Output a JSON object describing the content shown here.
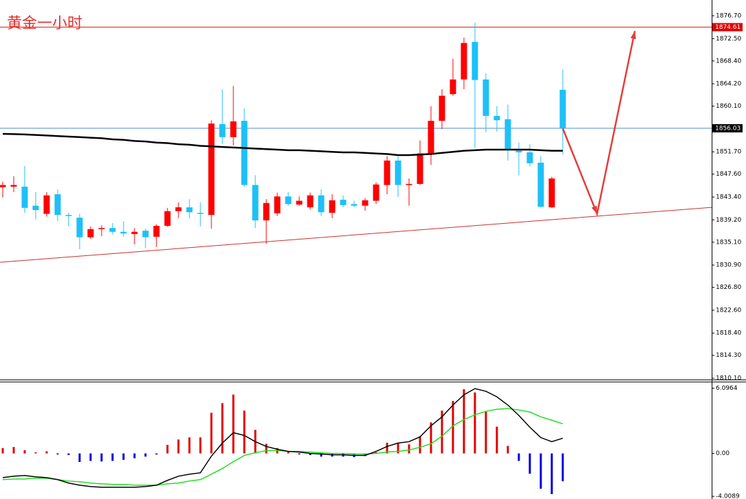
{
  "chart_data": [
    {
      "type": "candlestick",
      "title": "黄金一小时",
      "open": [
        1845.2,
        1845.3,
        1845.3,
        1841.8,
        1840.3,
        1843.9,
        1840.1,
        1839.6,
        1836.0,
        1837.5,
        1837.7,
        1837.0,
        1836.6,
        1837.2,
        1836.1,
        1838.1,
        1840.8,
        1841.5,
        1840.5,
        1840.1,
        1856.8,
        1854.4,
        1857.4,
        1845.6,
        1839.1,
        1840.4,
        1843.5,
        1842.0,
        1841.5,
        1843.7,
        1840.5,
        1842.9,
        1842.1,
        1841.8,
        1842.7,
        1845.6,
        1850.1,
        1845.6,
        1845.8,
        1851.4,
        1857.4,
        1862.3,
        1865.0,
        1871.9,
        1865.0,
        1858.3,
        1857.7,
        1851.9,
        1851.6,
        1849.7,
        1841.5,
        1863.1
      ],
      "high": [
        1846.2,
        1847.2,
        1849.1,
        1844.3,
        1844.3,
        1844.8,
        1840.5,
        1840.3,
        1838.0,
        1838.2,
        1838.6,
        1838.9,
        1837.7,
        1837.6,
        1838.4,
        1841.4,
        1842.4,
        1843.0,
        1842.4,
        1857.5,
        1863.2,
        1863.8,
        1859.7,
        1847.4,
        1843.0,
        1844.2,
        1844.3,
        1843.5,
        1844.2,
        1844.8,
        1843.9,
        1843.7,
        1842.7,
        1843.2,
        1846.1,
        1850.9,
        1850.9,
        1846.8,
        1853.8,
        1860.1,
        1863.2,
        1868.8,
        1872.7,
        1875.4,
        1866.1,
        1860.1,
        1860.4,
        1853.4,
        1853.1,
        1850.9,
        1847.1,
        1866.9
      ],
      "low": [
        1843.3,
        1844.3,
        1840.5,
        1839.3,
        1839.8,
        1839.0,
        1838.0,
        1833.8,
        1835.7,
        1836.2,
        1836.5,
        1836.1,
        1834.7,
        1834.0,
        1834.2,
        1837.9,
        1839.5,
        1839.5,
        1838.0,
        1837.6,
        1853.1,
        1852.9,
        1845.3,
        1837.7,
        1834.8,
        1839.9,
        1841.8,
        1841.8,
        1841.1,
        1839.9,
        1839.5,
        1841.5,
        1841.5,
        1840.9,
        1842.1,
        1843.9,
        1843.4,
        1841.8,
        1845.6,
        1849.3,
        1855.9,
        1862.0,
        1863.2,
        1852.5,
        1855.3,
        1855.4,
        1850.1,
        1847.4,
        1849.0,
        1841.5,
        1841.4,
        1851.2
      ],
      "close": [
        1845.6,
        1845.6,
        1841.4,
        1841.0,
        1843.7,
        1840.1,
        1839.9,
        1836.0,
        1837.5,
        1837.7,
        1837.0,
        1836.7,
        1837.0,
        1836.0,
        1838.1,
        1840.8,
        1841.5,
        1840.6,
        1840.3,
        1856.9,
        1854.4,
        1857.3,
        1845.6,
        1839.1,
        1842.3,
        1843.5,
        1842.1,
        1842.7,
        1843.7,
        1840.6,
        1842.8,
        1841.9,
        1841.8,
        1842.8,
        1845.7,
        1850.1,
        1845.6,
        1845.8,
        1851.4,
        1857.4,
        1862.0,
        1865.0,
        1871.7,
        1864.9,
        1858.3,
        1857.5,
        1852.1,
        1851.6,
        1849.6,
        1841.6,
        1846.8,
        1856.03
      ],
      "ma": [
        1855.0,
        1854.95,
        1854.9,
        1854.8,
        1854.7,
        1854.6,
        1854.5,
        1854.4,
        1854.3,
        1854.2,
        1854.0,
        1853.9,
        1853.7,
        1853.6,
        1853.4,
        1853.3,
        1853.1,
        1853.0,
        1852.8,
        1852.7,
        1852.6,
        1852.5,
        1852.4,
        1852.3,
        1852.2,
        1852.1,
        1852.0,
        1852.0,
        1851.9,
        1851.8,
        1851.7,
        1851.6,
        1851.6,
        1851.5,
        1851.4,
        1851.3,
        1851.1,
        1851.1,
        1851.2,
        1851.3,
        1851.5,
        1851.7,
        1851.9,
        1852.0,
        1852.1,
        1852.1,
        1852.1,
        1852.1,
        1852.1,
        1852.0,
        1851.9,
        1851.9
      ],
      "up_color": "#ff0000",
      "down_color": "#1ec0f8",
      "ma_color": "#000000",
      "ylim": [
        1809.85,
        1879.6
      ],
      "yticks": [
        {
          "value": 1876.7,
          "label": "1876.70"
        },
        {
          "value": 1872.5,
          "label": "1872.50"
        },
        {
          "value": 1868.4,
          "label": "1868.40"
        },
        {
          "value": 1864.2,
          "label": "1864.20"
        },
        {
          "value": 1860.1,
          "label": "1860.10"
        },
        {
          "value": 1851.7,
          "label": "1851.70"
        },
        {
          "value": 1847.6,
          "label": "1847.60"
        },
        {
          "value": 1843.4,
          "label": "1843.40"
        },
        {
          "value": 1839.2,
          "label": "1839.20"
        },
        {
          "value": 1835.1,
          "label": "1835.10"
        },
        {
          "value": 1830.9,
          "label": "1830.90"
        },
        {
          "value": 1826.8,
          "label": "1826.80"
        },
        {
          "value": 1822.6,
          "label": "1822.60"
        },
        {
          "value": 1818.4,
          "label": "1818.40"
        },
        {
          "value": 1814.3,
          "label": "1814.30"
        },
        {
          "value": 1810.1,
          "label": "1810.10"
        }
      ],
      "hlines": [
        {
          "value": 1874.61,
          "color": "#d42020",
          "tag_color": "#e00000"
        },
        {
          "value": 1856.03,
          "color": "#4a8ccc",
          "tag_color": "#000000"
        }
      ],
      "trendline": [
        1831.4,
        1841.5
      ],
      "trendline_color": "#c83030",
      "forecast": [
        1856.0,
        1840.3,
        1873.9
      ],
      "forecast_color": "#e83a3a"
    },
    {
      "type": "macd",
      "histogram": [
        0.5,
        0.6,
        0.3,
        0.1,
        0.2,
        -0.1,
        -0.15,
        -0.8,
        -0.7,
        -0.75,
        -0.7,
        -0.6,
        -0.45,
        -0.3,
        -0.1,
        0.8,
        1.3,
        1.5,
        1.5,
        3.8,
        4.7,
        5.5,
        4.0,
        2.2,
        0.9,
        0.5,
        0.15,
        -0.1,
        -0.15,
        -0.3,
        -0.3,
        -0.3,
        -0.35,
        -0.25,
        0.1,
        1.0,
        1.0,
        0.85,
        1.6,
        2.9,
        4.0,
        4.9,
        6.0,
        5.7,
        3.9,
        2.5,
        0.7,
        -0.7,
        -1.9,
        -3.3,
        -3.8,
        -2.6
      ],
      "macd": [
        -2.26,
        -2.13,
        -2.06,
        -2.19,
        -2.26,
        -2.45,
        -2.77,
        -2.97,
        -3.1,
        -3.16,
        -3.16,
        -3.16,
        -3.16,
        -3.1,
        -2.97,
        -2.52,
        -2.13,
        -1.94,
        -1.81,
        -0.26,
        0.97,
        1.94,
        1.68,
        1.1,
        0.65,
        0.39,
        0.19,
        0.13,
        0,
        -0.06,
        -0.13,
        -0.13,
        -0.19,
        -0.19,
        0.19,
        0.65,
        0.97,
        1.1,
        1.55,
        2.58,
        3.42,
        4.52,
        5.48,
        6.06,
        5.81,
        5.29,
        4.52,
        3.55,
        2.45,
        1.48,
        1.1,
        1.42
      ],
      "signal": [
        -2.45,
        -2.39,
        -2.39,
        -2.32,
        -2.32,
        -2.45,
        -2.58,
        -2.65,
        -2.77,
        -2.84,
        -2.9,
        -2.9,
        -2.97,
        -2.97,
        -2.97,
        -2.84,
        -2.77,
        -2.58,
        -2.45,
        -1.94,
        -1.42,
        -0.77,
        -0.19,
        0.06,
        0.26,
        0.26,
        0.19,
        0.19,
        0.13,
        0.06,
        0,
        0,
        -0.06,
        -0.06,
        0,
        0.13,
        0.19,
        0.32,
        0.58,
        0.9,
        1.61,
        2.58,
        3.16,
        3.61,
        3.94,
        4.13,
        4.19,
        4.06,
        3.87,
        3.42,
        3.1,
        2.77
      ],
      "positive_color": "#e00000",
      "negative_color": "#0000e0",
      "macd_color": "#000000",
      "signal_color": "#22dd22",
      "ylim": [
        -4.26,
        6.71
      ],
      "yticks": [
        6.0964,
        {
          "value": 0,
          "label": "0.00"
        },
        -4.0089
      ]
    }
  ]
}
